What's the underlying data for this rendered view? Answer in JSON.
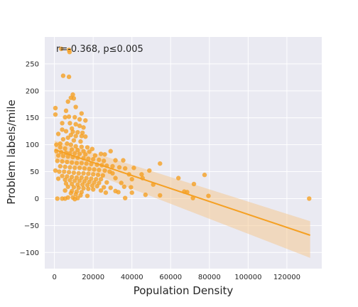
{
  "chart_data": {
    "type": "scatter",
    "title": "",
    "xlabel": "Population Density",
    "ylabel": "Problem labels/mile",
    "annotation": "r=-0.368, p≤0.005",
    "xlim": [
      -5000,
      138000
    ],
    "ylim": [
      -130,
      300
    ],
    "xticks": [
      0,
      20000,
      40000,
      60000,
      80000,
      100000,
      120000
    ],
    "yticks": [
      -100,
      -50,
      0,
      50,
      100,
      150,
      200,
      250
    ],
    "grid": true,
    "colors": {
      "point": "#f5a023",
      "line": "#f5a023",
      "band": "#f5c68a",
      "background": "#eaeaf2",
      "grid": "#ffffff"
    },
    "regression": {
      "x": [
        0,
        132000
      ],
      "y": [
        91,
        -68
      ],
      "ci_upper": [
        108,
        -42
      ],
      "ci_lower": [
        74,
        -110
      ]
    },
    "points": [
      [
        3500,
        278
      ],
      [
        7500,
        276
      ],
      [
        7800,
        272
      ],
      [
        4500,
        228
      ],
      [
        7500,
        226
      ],
      [
        9500,
        193
      ],
      [
        10000,
        186
      ],
      [
        8500,
        187
      ],
      [
        11000,
        170
      ],
      [
        7000,
        180
      ],
      [
        14000,
        158
      ],
      [
        16000,
        145
      ],
      [
        500,
        168
      ],
      [
        500,
        156
      ],
      [
        6000,
        163
      ],
      [
        7500,
        152
      ],
      [
        5500,
        151
      ],
      [
        10500,
        151
      ],
      [
        13000,
        147
      ],
      [
        4000,
        140
      ],
      [
        8000,
        140
      ],
      [
        11000,
        138
      ],
      [
        13000,
        135
      ],
      [
        15000,
        132
      ],
      [
        9000,
        130
      ],
      [
        4000,
        128
      ],
      [
        6000,
        125
      ],
      [
        9500,
        124
      ],
      [
        12000,
        123
      ],
      [
        14500,
        122
      ],
      [
        2000,
        120
      ],
      [
        8500,
        118
      ],
      [
        11000,
        116
      ],
      [
        14000,
        116
      ],
      [
        16000,
        115
      ],
      [
        7000,
        113
      ],
      [
        4500,
        110
      ],
      [
        10000,
        108
      ],
      [
        13500,
        106
      ],
      [
        1000,
        100
      ],
      [
        3000,
        102
      ],
      [
        6500,
        102
      ],
      [
        8500,
        100
      ],
      [
        11000,
        97
      ],
      [
        14000,
        96
      ],
      [
        17000,
        95
      ],
      [
        19500,
        92
      ],
      [
        3000,
        95
      ],
      [
        5500,
        93
      ],
      [
        9000,
        91
      ],
      [
        12000,
        90
      ],
      [
        15000,
        88
      ],
      [
        18000,
        87
      ],
      [
        1000,
        88
      ],
      [
        3500,
        86
      ],
      [
        6000,
        85
      ],
      [
        8000,
        84
      ],
      [
        10500,
        84
      ],
      [
        13000,
        83
      ],
      [
        16000,
        82
      ],
      [
        21000,
        80
      ],
      [
        24000,
        83
      ],
      [
        26000,
        82
      ],
      [
        29000,
        88
      ],
      [
        2000,
        80
      ],
      [
        4500,
        79
      ],
      [
        7000,
        78
      ],
      [
        9500,
        77
      ],
      [
        12000,
        76
      ],
      [
        15000,
        75
      ],
      [
        17500,
        74
      ],
      [
        20000,
        73
      ],
      [
        23000,
        72
      ],
      [
        25500,
        70
      ],
      [
        31500,
        71
      ],
      [
        35500,
        71
      ],
      [
        1500,
        70
      ],
      [
        4000,
        69
      ],
      [
        6500,
        68
      ],
      [
        9000,
        67
      ],
      [
        11500,
        66
      ],
      [
        14000,
        66
      ],
      [
        16500,
        65
      ],
      [
        19000,
        64
      ],
      [
        22000,
        63
      ],
      [
        24500,
        62
      ],
      [
        27000,
        61
      ],
      [
        30000,
        60
      ],
      [
        33500,
        58
      ],
      [
        36500,
        56
      ],
      [
        41000,
        57
      ],
      [
        3000,
        60
      ],
      [
        5500,
        59
      ],
      [
        8000,
        58
      ],
      [
        10500,
        57
      ],
      [
        13000,
        57
      ],
      [
        15500,
        56
      ],
      [
        18000,
        55
      ],
      [
        20500,
        54
      ],
      [
        23000,
        53
      ],
      [
        26000,
        52
      ],
      [
        28500,
        50
      ],
      [
        49000,
        52
      ],
      [
        54500,
        65
      ],
      [
        500,
        52
      ],
      [
        2500,
        50
      ],
      [
        5000,
        50
      ],
      [
        7500,
        49
      ],
      [
        10000,
        48
      ],
      [
        12500,
        47
      ],
      [
        15000,
        47
      ],
      [
        17500,
        46
      ],
      [
        20000,
        45
      ],
      [
        22500,
        44
      ],
      [
        25000,
        43
      ],
      [
        30000,
        47
      ],
      [
        38500,
        45
      ],
      [
        45000,
        45
      ],
      [
        64000,
        38
      ],
      [
        77500,
        44
      ],
      [
        4000,
        42
      ],
      [
        6500,
        41
      ],
      [
        9000,
        40
      ],
      [
        11500,
        39
      ],
      [
        14000,
        39
      ],
      [
        16500,
        38
      ],
      [
        19000,
        37
      ],
      [
        21500,
        36
      ],
      [
        24000,
        36
      ],
      [
        31500,
        38
      ],
      [
        40000,
        36
      ],
      [
        45500,
        38
      ],
      [
        2000,
        37
      ],
      [
        5500,
        35
      ],
      [
        8000,
        34
      ],
      [
        10500,
        33
      ],
      [
        13000,
        33
      ],
      [
        15500,
        32
      ],
      [
        18000,
        31
      ],
      [
        20500,
        30
      ],
      [
        23000,
        29
      ],
      [
        27000,
        30
      ],
      [
        34500,
        29
      ],
      [
        6000,
        28
      ],
      [
        9000,
        27
      ],
      [
        12000,
        26
      ],
      [
        14500,
        26
      ],
      [
        17000,
        25
      ],
      [
        19500,
        24
      ],
      [
        22000,
        23
      ],
      [
        25500,
        21
      ],
      [
        29000,
        20
      ],
      [
        36000,
        22
      ],
      [
        39500,
        21
      ],
      [
        51000,
        26
      ],
      [
        72000,
        27
      ],
      [
        7000,
        22
      ],
      [
        10000,
        21
      ],
      [
        12500,
        20
      ],
      [
        15000,
        19
      ],
      [
        17500,
        18
      ],
      [
        20000,
        17
      ],
      [
        24000,
        15
      ],
      [
        31500,
        14
      ],
      [
        5500,
        15
      ],
      [
        9000,
        14
      ],
      [
        11500,
        13
      ],
      [
        14000,
        12
      ],
      [
        26500,
        11
      ],
      [
        33000,
        12
      ],
      [
        40000,
        11
      ],
      [
        47000,
        7
      ],
      [
        54500,
        6
      ],
      [
        67000,
        13
      ],
      [
        68500,
        12
      ],
      [
        79500,
        5
      ],
      [
        8500,
        10
      ],
      [
        11000,
        8
      ],
      [
        13500,
        6
      ],
      [
        17000,
        5
      ],
      [
        9500,
        2
      ],
      [
        12000,
        1
      ],
      [
        71500,
        1
      ],
      [
        1500,
        0
      ],
      [
        4000,
        0
      ],
      [
        5500,
        0
      ],
      [
        7000,
        2
      ],
      [
        10500,
        -1
      ],
      [
        36500,
        1
      ],
      [
        131500,
        0
      ]
    ]
  }
}
